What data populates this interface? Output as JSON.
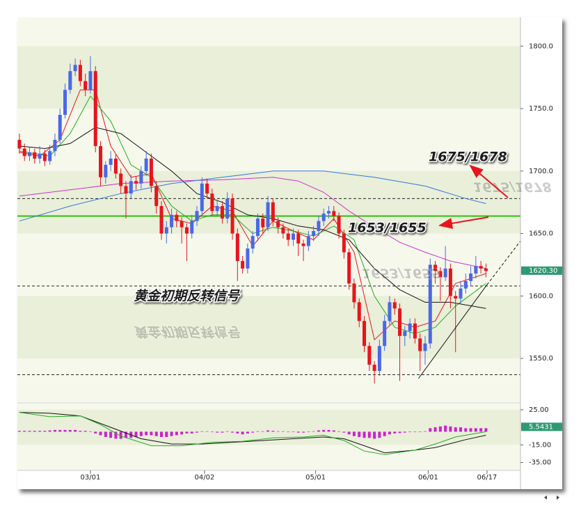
{
  "chart_data": [
    {
      "type": "candlestick",
      "xlim": [
        -0.4,
        98.8
      ],
      "xticks": [
        {
          "value": 14,
          "label": "03/01"
        },
        {
          "value": 36.5,
          "label": "04/02"
        },
        {
          "value": 58.4,
          "label": "05/01"
        },
        {
          "value": 80.6,
          "label": "06/01"
        },
        {
          "value": 92.2,
          "label": "06/17"
        }
      ],
      "ylim": [
        1515,
        1823
      ],
      "yticks": [
        {
          "value": 1550,
          "label": "1550.0"
        },
        {
          "value": 1600,
          "label": "1600.0"
        },
        {
          "value": 1650,
          "label": "1650.0"
        },
        {
          "value": 1700,
          "label": "1700.0"
        },
        {
          "value": 1750,
          "label": "1750.0"
        },
        {
          "value": 1800,
          "label": "1800.0"
        }
      ],
      "up_color": "#4a68e8",
      "down_color": "#e8141c",
      "candles": [
        [
          1725,
          1730,
          1714,
          1718
        ],
        [
          1718,
          1722,
          1708,
          1712
        ],
        [
          1712,
          1719,
          1708,
          1715
        ],
        [
          1715,
          1718,
          1706,
          1710
        ],
        [
          1710,
          1720,
          1706,
          1714
        ],
        [
          1714,
          1717,
          1704,
          1708
        ],
        [
          1708,
          1721,
          1705,
          1716
        ],
        [
          1716,
          1730,
          1712,
          1725
        ],
        [
          1725,
          1750,
          1722,
          1745
        ],
        [
          1745,
          1770,
          1742,
          1765
        ],
        [
          1765,
          1786,
          1762,
          1780
        ],
        [
          1780,
          1790,
          1776,
          1785
        ],
        [
          1785,
          1789,
          1768,
          1772
        ],
        [
          1772,
          1778,
          1760,
          1765
        ],
        [
          1765,
          1792,
          1762,
          1780
        ],
        [
          1780,
          1784,
          1715,
          1720
        ],
        [
          1720,
          1724,
          1688,
          1695
        ],
        [
          1695,
          1708,
          1690,
          1705
        ],
        [
          1705,
          1716,
          1700,
          1710
        ],
        [
          1710,
          1713,
          1694,
          1698
        ],
        [
          1698,
          1702,
          1682,
          1688
        ],
        [
          1688,
          1692,
          1662,
          1682
        ],
        [
          1682,
          1697,
          1678,
          1692
        ],
        [
          1692,
          1696,
          1685,
          1690
        ],
        [
          1690,
          1704,
          1686,
          1700
        ],
        [
          1700,
          1716,
          1696,
          1710
        ],
        [
          1710,
          1714,
          1683,
          1688
        ],
        [
          1688,
          1692,
          1666,
          1672
        ],
        [
          1672,
          1676,
          1645,
          1650
        ],
        [
          1650,
          1660,
          1642,
          1655
        ],
        [
          1655,
          1670,
          1650,
          1665
        ],
        [
          1665,
          1668,
          1655,
          1660
        ],
        [
          1660,
          1663,
          1642,
          1655
        ],
        [
          1655,
          1658,
          1628,
          1650
        ],
        [
          1650,
          1665,
          1646,
          1660
        ],
        [
          1660,
          1672,
          1656,
          1668
        ],
        [
          1668,
          1695,
          1664,
          1690
        ],
        [
          1690,
          1694,
          1678,
          1682
        ],
        [
          1682,
          1686,
          1664,
          1668
        ],
        [
          1668,
          1677,
          1664,
          1672
        ],
        [
          1672,
          1676,
          1658,
          1662
        ],
        [
          1662,
          1683,
          1658,
          1678
        ],
        [
          1678,
          1682,
          1645,
          1650
        ],
        [
          1650,
          1654,
          1612,
          1628
        ],
        [
          1628,
          1632,
          1618,
          1622
        ],
        [
          1622,
          1642,
          1618,
          1638
        ],
        [
          1638,
          1652,
          1634,
          1648
        ],
        [
          1648,
          1666,
          1644,
          1662
        ],
        [
          1662,
          1666,
          1650,
          1655
        ],
        [
          1655,
          1680,
          1652,
          1675
        ],
        [
          1675,
          1678,
          1656,
          1660
        ],
        [
          1660,
          1663,
          1650,
          1655
        ],
        [
          1655,
          1658,
          1646,
          1650
        ],
        [
          1650,
          1654,
          1640,
          1645
        ],
        [
          1645,
          1654,
          1640,
          1650
        ],
        [
          1650,
          1653,
          1632,
          1642
        ],
        [
          1642,
          1645,
          1628,
          1640
        ],
        [
          1640,
          1652,
          1636,
          1648
        ],
        [
          1648,
          1656,
          1644,
          1652
        ],
        [
          1652,
          1664,
          1648,
          1660
        ],
        [
          1660,
          1670,
          1656,
          1666
        ],
        [
          1666,
          1672,
          1662,
          1668
        ],
        [
          1668,
          1672,
          1660,
          1664
        ],
        [
          1664,
          1667,
          1646,
          1650
        ],
        [
          1650,
          1653,
          1630,
          1635
        ],
        [
          1635,
          1638,
          1605,
          1610
        ],
        [
          1610,
          1614,
          1590,
          1595
        ],
        [
          1595,
          1598,
          1575,
          1580
        ],
        [
          1580,
          1584,
          1555,
          1560
        ],
        [
          1560,
          1563,
          1540,
          1545
        ],
        [
          1545,
          1548,
          1530,
          1540
        ],
        [
          1540,
          1565,
          1536,
          1560
        ],
        [
          1560,
          1585,
          1556,
          1580
        ],
        [
          1580,
          1600,
          1576,
          1595
        ],
        [
          1595,
          1598,
          1585,
          1590
        ],
        [
          1590,
          1594,
          1532,
          1568
        ],
        [
          1568,
          1576,
          1560,
          1572
        ],
        [
          1572,
          1582,
          1566,
          1578
        ],
        [
          1578,
          1582,
          1562,
          1566
        ],
        [
          1566,
          1570,
          1540,
          1556
        ],
        [
          1556,
          1568,
          1545,
          1562
        ],
        [
          1562,
          1630,
          1558,
          1625
        ],
        [
          1625,
          1628,
          1610,
          1620
        ],
        [
          1620,
          1623,
          1596,
          1615
        ],
        [
          1615,
          1640,
          1612,
          1622
        ],
        [
          1622,
          1626,
          1590,
          1600
        ],
        [
          1600,
          1604,
          1555,
          1598
        ],
        [
          1598,
          1612,
          1594,
          1606
        ],
        [
          1606,
          1618,
          1602,
          1612
        ],
        [
          1612,
          1624,
          1608,
          1618
        ],
        [
          1618,
          1632,
          1614,
          1624
        ],
        [
          1624,
          1628,
          1618,
          1622
        ],
        [
          1622,
          1626,
          1615,
          1620
        ]
      ],
      "lines": [
        {
          "color": "#e8141c",
          "x": [
            0,
            4,
            8,
            12,
            15,
            18,
            22,
            26,
            30,
            34,
            38,
            42,
            46,
            50,
            54,
            58,
            62,
            66,
            70,
            74,
            78,
            82,
            86,
            92
          ],
          "values": [
            1715,
            1712,
            1725,
            1765,
            1765,
            1720,
            1695,
            1698,
            1662,
            1658,
            1672,
            1668,
            1640,
            1660,
            1652,
            1645,
            1662,
            1635,
            1565,
            1580,
            1575,
            1580,
            1610,
            1618
          ]
        },
        {
          "color": "#22aa22",
          "x": [
            0,
            6,
            10,
            14,
            18,
            22,
            26,
            30,
            34,
            38,
            42,
            46,
            50,
            54,
            58,
            62,
            66,
            70,
            74,
            78,
            82,
            86,
            92
          ],
          "values": [
            1716,
            1712,
            1730,
            1760,
            1740,
            1705,
            1695,
            1672,
            1660,
            1665,
            1665,
            1650,
            1655,
            1652,
            1648,
            1656,
            1645,
            1600,
            1575,
            1570,
            1575,
            1592,
            1610
          ]
        },
        {
          "color": "#111111",
          "x": [
            0,
            5,
            10,
            15,
            20,
            25,
            30,
            35,
            40,
            45,
            50,
            55,
            60,
            65,
            70,
            75,
            80,
            85,
            92
          ],
          "values": [
            1720,
            1718,
            1722,
            1735,
            1730,
            1715,
            1700,
            1682,
            1675,
            1665,
            1662,
            1656,
            1653,
            1645,
            1622,
            1605,
            1595,
            1595,
            1590
          ]
        },
        {
          "color": "#cc33cc",
          "x": [
            0,
            10,
            20,
            30,
            40,
            50,
            55,
            60,
            65,
            70,
            75,
            80,
            85,
            92
          ],
          "values": [
            1680,
            1685,
            1690,
            1692,
            1693,
            1695,
            1692,
            1683,
            1668,
            1655,
            1643,
            1635,
            1628,
            1622
          ]
        },
        {
          "color": "#3377dd",
          "x": [
            0,
            10,
            20,
            30,
            40,
            50,
            60,
            70,
            80,
            88,
            92
          ],
          "values": [
            1660,
            1672,
            1682,
            1690,
            1695,
            1700,
            1700,
            1695,
            1688,
            1678,
            1674
          ]
        }
      ],
      "hlines": [
        {
          "value": 1664,
          "color": "#33bb11",
          "style": "solid"
        },
        {
          "value": 1678,
          "color": "#222222",
          "style": "dashed"
        },
        {
          "value": 1608,
          "color": "#222222",
          "style": "dashed"
        },
        {
          "value": 1537,
          "color": "#222222",
          "style": "dashed"
        }
      ],
      "trendline": {
        "x": [
          78.7,
          92.2,
          98.8
        ],
        "values": [
          1534,
          1609,
          1644
        ]
      },
      "last": {
        "value": 1620.3,
        "label": "1620.30",
        "color": "#2e9a72"
      },
      "annotations": [
        "1675/1678",
        "1653/1655",
        "黄金初期反转信号"
      ]
    },
    {
      "type": "macd",
      "ylim": [
        -44,
        32
      ],
      "yticks": [
        {
          "value": 25,
          "label": "25.00"
        },
        {
          "value": -15,
          "label": "-15.00"
        },
        {
          "value": -35,
          "label": "-35.00"
        }
      ],
      "hist_color": "#cc22cc",
      "hist": [
        1,
        1,
        1,
        1,
        1,
        1,
        1.5,
        2,
        2,
        2,
        2,
        2,
        1,
        1,
        0.5,
        -2,
        -4,
        -6,
        -7,
        -8,
        -8,
        -7,
        -7,
        -6,
        -5,
        -4,
        -4,
        -5,
        -6,
        -6,
        -5,
        -4,
        -3,
        -2,
        -2,
        -1,
        0.5,
        0.5,
        -0.5,
        -1,
        -1,
        0.5,
        -1,
        -2,
        -3,
        -2,
        -1,
        0.5,
        0.5,
        1.5,
        1,
        0.5,
        0.5,
        -0.5,
        -0.5,
        -1,
        -1,
        -0.5,
        0.5,
        1.5,
        2,
        2,
        1.5,
        0.5,
        -1,
        -3,
        -5,
        -6,
        -7,
        -7,
        -8,
        -7,
        -5,
        -3,
        -2,
        -1.5,
        -1,
        -0.5,
        -0.5,
        -0.5,
        0.5,
        4,
        5,
        6,
        7,
        6,
        5,
        5,
        4,
        4,
        4,
        4,
        4
      ],
      "lines": [
        {
          "color": "#111111",
          "x": [
            0,
            6,
            12,
            18,
            24,
            30,
            36,
            42,
            48,
            54,
            60,
            64,
            68,
            72,
            78,
            82,
            88,
            92
          ],
          "values": [
            22,
            21,
            18,
            5,
            -8,
            -14,
            -14,
            -12,
            -10,
            -8,
            -6,
            -8,
            -16,
            -24,
            -21,
            -18,
            -9,
            -4
          ]
        },
        {
          "color": "#22aa22",
          "x": [
            0,
            6,
            12,
            16,
            20,
            26,
            32,
            38,
            44,
            50,
            56,
            60,
            64,
            68,
            72,
            78,
            82,
            86,
            92
          ],
          "values": [
            22,
            17,
            18,
            8,
            -5,
            -16,
            -16,
            -12,
            -11,
            -7,
            -6,
            -4,
            -10,
            -22,
            -26,
            -21,
            -14,
            -6,
            0
          ]
        }
      ],
      "last": {
        "value": 5.5431,
        "label": "5.5431",
        "color": "#2e9a72"
      }
    }
  ]
}
